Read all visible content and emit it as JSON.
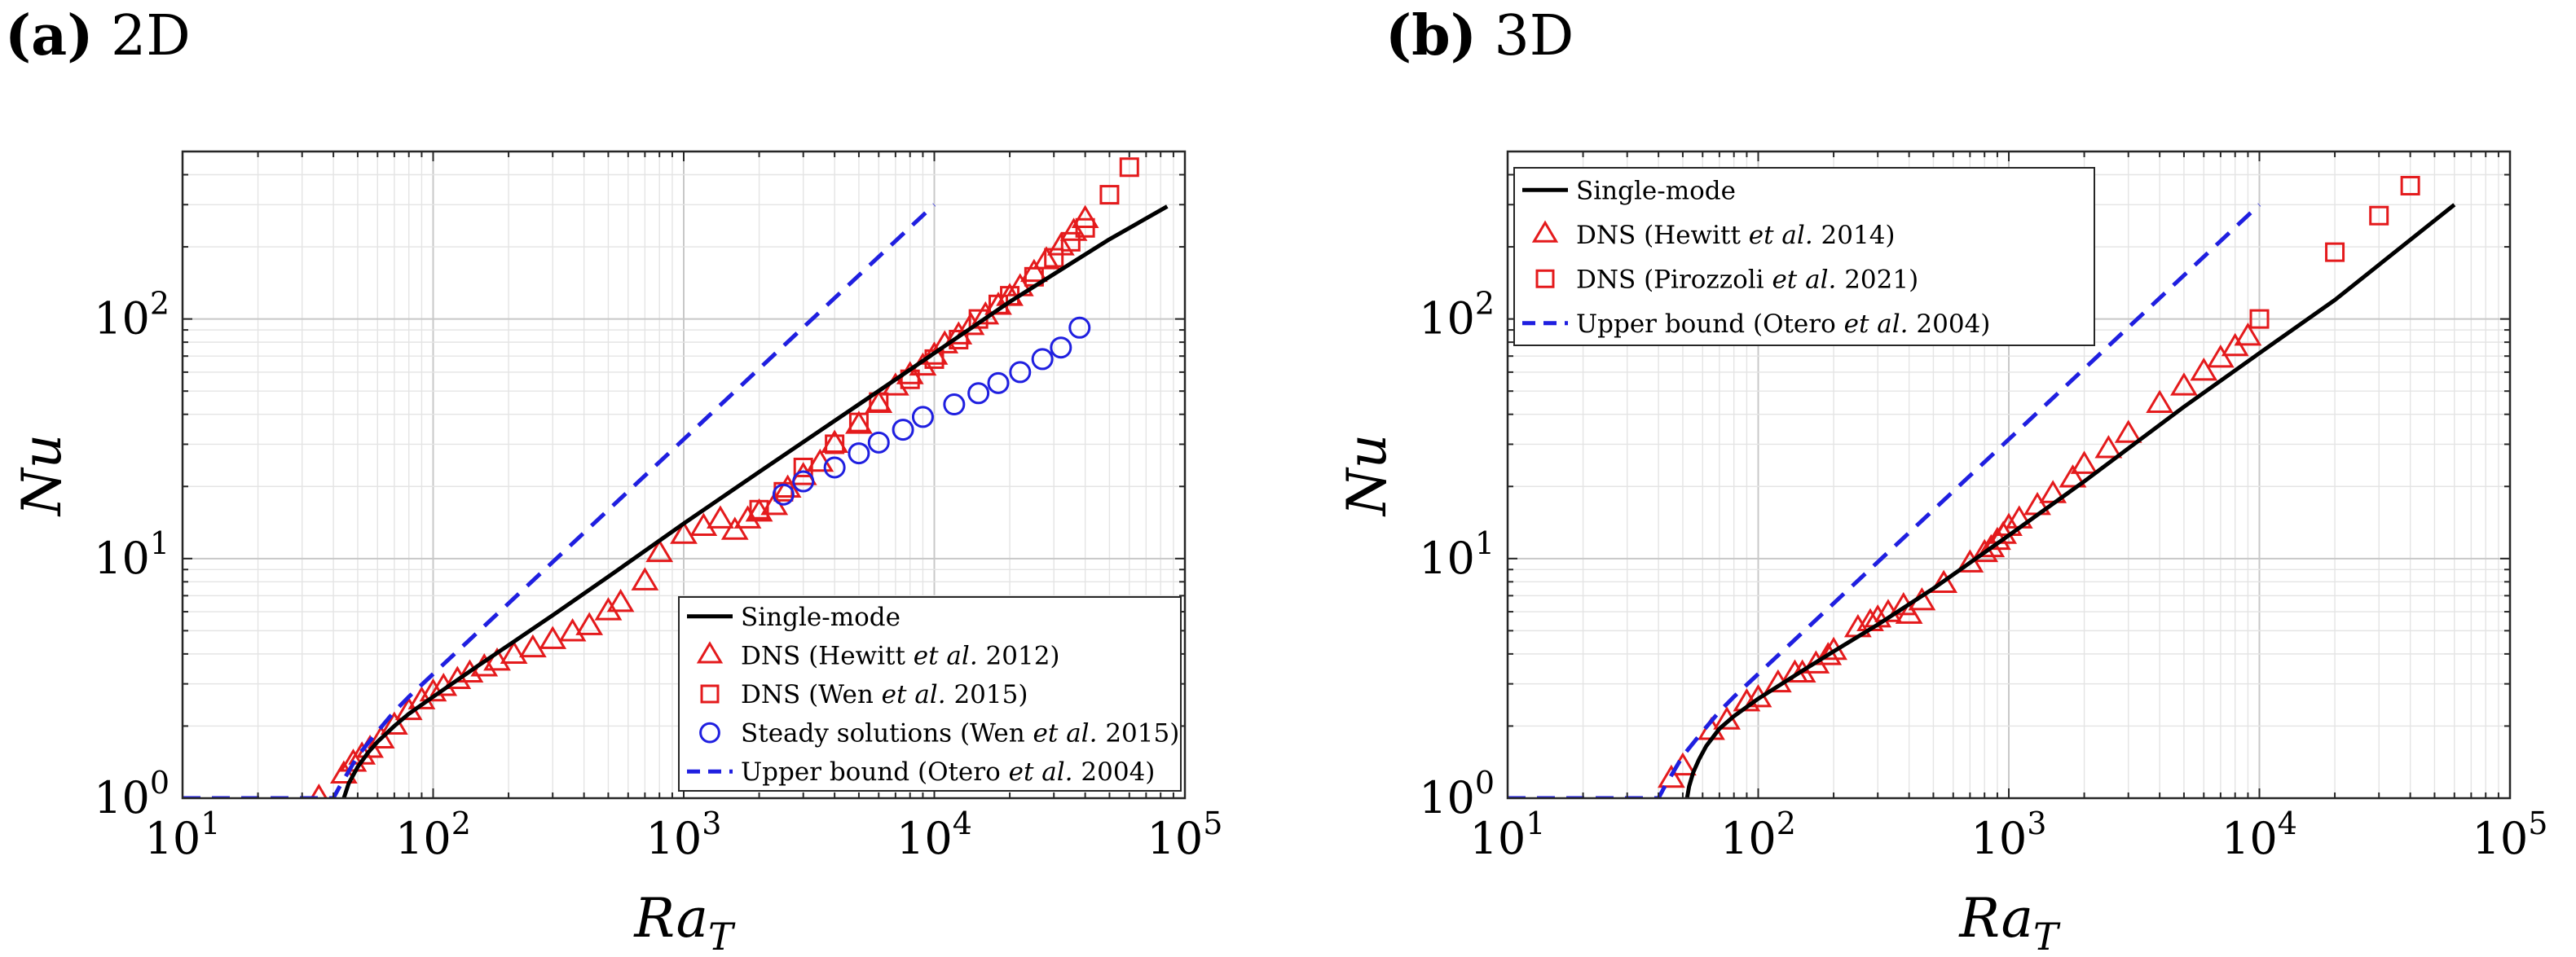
{
  "panels": [
    {
      "id": "a",
      "label": "(a)",
      "title": "2D",
      "chart_data": {
        "type": "scatter",
        "xscale": "log",
        "yscale": "log",
        "xlim": [
          10,
          100000
        ],
        "ylim": [
          1,
          500
        ],
        "xlabel_base": "Ra",
        "xlabel_sub": "T",
        "ylabel": "Nu",
        "grid": true,
        "xticks": [
          {
            "base": "10",
            "exp": "1"
          },
          {
            "base": "10",
            "exp": "2"
          },
          {
            "base": "10",
            "exp": "3"
          },
          {
            "base": "10",
            "exp": "4"
          },
          {
            "base": "10",
            "exp": "5"
          }
        ],
        "yticks": [
          {
            "base": "10",
            "exp": "0"
          },
          {
            "base": "10",
            "exp": "1"
          },
          {
            "base": "10",
            "exp": "2"
          }
        ],
        "legend_position": "bottom-right",
        "series": [
          {
            "name": "Single-mode",
            "legend": [
              "Single-mode"
            ],
            "kind": "line",
            "color": "#000000",
            "dash": false,
            "x": [
              44,
              46,
              50,
              55,
              60,
              70,
              80,
              100,
              150,
              200,
              300,
              500,
              1000,
              2000,
              5000,
              10000,
              20000,
              50000,
              85000
            ],
            "y": [
              1.0,
              1.15,
              1.35,
              1.55,
              1.72,
              2.0,
              2.25,
              2.65,
              3.55,
              4.35,
              5.8,
              8.4,
              14,
              23,
              44,
              72,
              118,
              215,
              295
            ]
          },
          {
            "name": "DNS (Hewitt et al. 2012)",
            "legend": [
              "DNS (Hewitt ",
              "et al.",
              " 2012)"
            ],
            "kind": "marker",
            "marker": "triangle",
            "color": "#e41a1c",
            "x": [
              35,
              44,
              48,
              52,
              56,
              62,
              70,
              80,
              90,
              100,
              110,
              125,
              140,
              160,
              180,
              210,
              250,
              300,
              360,
              420,
              500,
              560,
              700,
              800,
              1000,
              1200,
              1400,
              1600,
              1800,
              2000,
              2300,
              2600,
              3000,
              3500,
              4000,
              5000,
              6000,
              7000,
              8000,
              9000,
              10000,
              11000,
              12500,
              14000,
              16000,
              18000,
              20000,
              22000,
              25000,
              28000,
              32000,
              36000,
              40000
            ],
            "y": [
              1.0,
              1.25,
              1.4,
              1.5,
              1.6,
              1.75,
              2.0,
              2.3,
              2.55,
              2.75,
              2.9,
              3.1,
              3.3,
              3.5,
              3.7,
              3.95,
              4.2,
              4.55,
              4.9,
              5.2,
              6.0,
              6.5,
              8.0,
              10.5,
              12.5,
              13.5,
              14.5,
              13.0,
              14.5,
              15.5,
              16.5,
              19.5,
              22,
              25,
              30,
              36,
              44,
              52,
              58,
              63,
              70,
              78,
              85,
              93,
              103,
              113,
              123,
              135,
              155,
              175,
              200,
              230,
              260
            ]
          },
          {
            "name": "DNS (Wen et al. 2015)",
            "legend": [
              "DNS (Wen ",
              "et al.",
              " 2015)"
            ],
            "kind": "marker",
            "marker": "square",
            "color": "#e41a1c",
            "x": [
              2000,
              2500,
              3000,
              4000,
              5000,
              6000,
              8000,
              10000,
              12500,
              15000,
              18000,
              20000,
              25000,
              30000,
              35000,
              40000,
              50000,
              60000
            ],
            "y": [
              16,
              19,
              24,
              30,
              37,
              45,
              56,
              68,
              82,
              100,
              115,
              125,
              150,
              180,
              210,
              240,
              330,
              430
            ]
          },
          {
            "name": "Steady solutions (Wen et al. 2015)",
            "legend": [
              "Steady solutions (Wen ",
              "et al.",
              " 2015)"
            ],
            "kind": "marker",
            "marker": "circle",
            "color": "#1f1fe0",
            "x": [
              2500,
              3000,
              4000,
              5000,
              6000,
              7500,
              9000,
              12000,
              15000,
              18000,
              22000,
              27000,
              32000,
              38000
            ],
            "y": [
              18.5,
              21,
              24,
              27.5,
              30.5,
              34.5,
              39,
              44,
              49,
              54,
              60,
              68,
              76,
              92
            ]
          },
          {
            "name": "Upper bound (Otero et al. 2004)",
            "legend": [
              "Upper bound (Otero ",
              "et al.",
              " 2004)"
            ],
            "kind": "line",
            "color": "#1f1fe0",
            "dash": true,
            "x": [
              10,
              40,
              42,
              50,
              60,
              70,
              80,
              100,
              10000
            ],
            "y": [
              1.0,
              1.0,
              1.1,
              1.5,
              1.9,
              2.3,
              2.65,
              3.3,
              300
            ]
          }
        ]
      }
    },
    {
      "id": "b",
      "label": "(b)",
      "title": "3D",
      "chart_data": {
        "type": "scatter",
        "xscale": "log",
        "yscale": "log",
        "xlim": [
          10,
          100000
        ],
        "ylim": [
          1,
          500
        ],
        "xlabel_base": "Ra",
        "xlabel_sub": "T",
        "ylabel": "Nu",
        "grid": true,
        "xticks": [
          {
            "base": "10",
            "exp": "1"
          },
          {
            "base": "10",
            "exp": "2"
          },
          {
            "base": "10",
            "exp": "3"
          },
          {
            "base": "10",
            "exp": "4"
          },
          {
            "base": "10",
            "exp": "5"
          }
        ],
        "yticks": [
          {
            "base": "10",
            "exp": "0"
          },
          {
            "base": "10",
            "exp": "1"
          },
          {
            "base": "10",
            "exp": "2"
          }
        ],
        "legend_position": "top-left",
        "series": [
          {
            "name": "Single-mode",
            "legend": [
              "Single-mode"
            ],
            "kind": "line",
            "color": "#000000",
            "dash": false,
            "x": [
              52,
              53,
              55,
              58,
              62,
              70,
              80,
              100,
              150,
              200,
              300,
              500,
              1000,
              2000,
              5000,
              10000,
              20000,
              60000
            ],
            "y": [
              1.0,
              1.12,
              1.28,
              1.45,
              1.65,
              1.95,
              2.2,
              2.6,
              3.4,
              4.1,
              5.3,
              7.5,
              12.5,
              21,
              43,
              72,
              120,
              300
            ]
          },
          {
            "name": "DNS (Hewitt et al. 2014)",
            "legend": [
              "DNS (Hewitt ",
              "et al.",
              " 2014)"
            ],
            "kind": "marker",
            "marker": "triangle",
            "color": "#e41a1c",
            "x": [
              45,
              50,
              65,
              75,
              90,
              100,
              120,
              140,
              150,
              170,
              190,
              200,
              250,
              280,
              300,
              330,
              380,
              400,
              450,
              550,
              700,
              800,
              850,
              900,
              950,
              1000,
              1100,
              1300,
              1500,
              1800,
              2000,
              2500,
              3000,
              4000,
              5000,
              6000,
              7000,
              8000,
              9000
            ],
            "y": [
              1.2,
              1.35,
              1.9,
              2.1,
              2.5,
              2.6,
              3.0,
              3.3,
              3.3,
              3.6,
              3.9,
              4.1,
              5.1,
              5.4,
              5.6,
              5.9,
              6.3,
              5.8,
              6.6,
              7.8,
              9.5,
              10.5,
              11.0,
              11.8,
              12.5,
              13.5,
              14.5,
              16.5,
              18.5,
              21.5,
              24.5,
              28.5,
              33,
              44,
              52,
              60,
              68,
              76,
              84
            ]
          },
          {
            "name": "DNS (Pirozzoli et al. 2021)",
            "legend": [
              "DNS (Pirozzoli ",
              "et al.",
              " 2021)"
            ],
            "kind": "marker",
            "marker": "square",
            "color": "#e41a1c",
            "x": [
              10000,
              20000,
              30000,
              40000
            ],
            "y": [
              100,
              190,
              270,
              360
            ]
          },
          {
            "name": "Upper bound (Otero et al. 2004)",
            "legend": [
              "Upper bound (Otero ",
              "et al.",
              " 2004)"
            ],
            "kind": "line",
            "color": "#1f1fe0",
            "dash": true,
            "x": [
              10,
              40,
              42,
              50,
              60,
              70,
              80,
              100,
              10000
            ],
            "y": [
              1.0,
              1.0,
              1.1,
              1.5,
              1.9,
              2.3,
              2.65,
              3.3,
              300
            ]
          }
        ]
      }
    }
  ]
}
